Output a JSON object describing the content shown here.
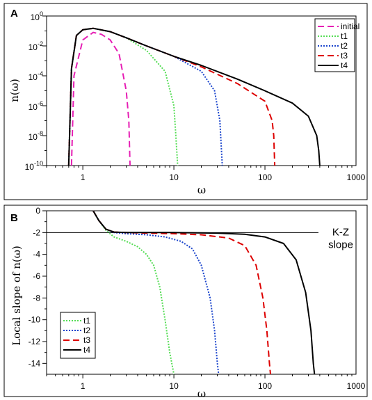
{
  "colors": {
    "initial": "#e61eb4",
    "t1": "#55dd55",
    "t2": "#1a44cc",
    "t3": "#dd0000",
    "t4": "#000000"
  },
  "chart_data": [
    {
      "panel": "A",
      "type": "line",
      "xscale": "log",
      "yscale": "log",
      "xlabel": "ω",
      "ylabel": "n(ω)",
      "xlim": [
        0.4,
        1000
      ],
      "ylim": [
        1e-10,
        1
      ],
      "x_tick_labels": [
        "1",
        "10",
        "100",
        "1000"
      ],
      "y_tick_labels": [
        {
          "base": "10",
          "exp": "0"
        },
        {
          "base": "10",
          "exp": "-2"
        },
        {
          "base": "10",
          "exp": "-4"
        },
        {
          "base": "10",
          "exp": "-6"
        },
        {
          "base": "10",
          "exp": "-8"
        },
        {
          "base": "10",
          "exp": "-10"
        }
      ],
      "legend": [
        "initial",
        "t1",
        "t2",
        "t3",
        "t4"
      ],
      "legend_position": "top-right",
      "series": [
        {
          "name": "initial",
          "style": "dashed",
          "x": [
            0.75,
            0.8,
            1.0,
            1.3,
            1.6,
            2.0,
            2.5,
            3.0,
            3.2,
            3.3
          ],
          "y": [
            1e-10,
            0.0001,
            0.025,
            0.08,
            0.06,
            0.025,
            0.003,
            1e-05,
            1e-07,
            1e-10
          ]
        },
        {
          "name": "t1",
          "style": "dotted",
          "x": [
            0.7,
            0.75,
            0.85,
            1.0,
            1.3,
            2.0,
            3.0,
            5.0,
            8.0,
            10.0,
            10.5,
            11.0
          ],
          "y": [
            1e-10,
            0.0003,
            0.05,
            0.12,
            0.15,
            0.09,
            0.035,
            0.005,
            0.0002,
            1e-06,
            1e-08,
            1e-10
          ]
        },
        {
          "name": "t2",
          "style": "dotted",
          "x": [
            0.7,
            0.75,
            0.85,
            1.0,
            1.3,
            2.0,
            3.0,
            5.0,
            10.0,
            20.0,
            28.0,
            32.0,
            34.0
          ],
          "y": [
            1e-10,
            0.0003,
            0.05,
            0.12,
            0.15,
            0.09,
            0.035,
            0.01,
            0.002,
            0.0002,
            1e-05,
            1e-07,
            1e-10
          ]
        },
        {
          "name": "t3",
          "style": "dashed",
          "x": [
            0.7,
            0.75,
            0.85,
            1.0,
            1.3,
            2.0,
            3.0,
            5.0,
            10.0,
            20.0,
            50.0,
            100.0,
            120.0,
            125.0,
            128.0
          ],
          "y": [
            1e-10,
            0.0003,
            0.05,
            0.12,
            0.15,
            0.09,
            0.035,
            0.01,
            0.002,
            0.0004,
            3e-05,
            2e-06,
            1e-07,
            1e-08,
            1e-10
          ]
        },
        {
          "name": "t4",
          "style": "solid",
          "x": [
            0.7,
            0.75,
            0.85,
            1.0,
            1.3,
            2.0,
            3.0,
            5.0,
            10.0,
            20.0,
            50.0,
            100.0,
            200.0,
            300.0,
            370.0,
            390.0,
            400.0
          ],
          "y": [
            1e-10,
            0.0003,
            0.05,
            0.12,
            0.15,
            0.09,
            0.035,
            0.01,
            0.002,
            0.0005,
            6e-05,
            1e-05,
            1.5e-06,
            2e-07,
            1e-08,
            1e-09,
            1e-10
          ]
        }
      ]
    },
    {
      "panel": "B",
      "type": "line",
      "xscale": "log",
      "xlabel": "ω",
      "ylabel": "Local slope of n(ω)",
      "xlim": [
        0.4,
        1000
      ],
      "ylim": [
        -15,
        0
      ],
      "x_tick_labels": [
        "1",
        "10",
        "100",
        "1000"
      ],
      "y_tick_labels": [
        "0",
        "-2",
        "-4",
        "-6",
        "-8",
        "-10",
        "-12",
        "-14"
      ],
      "reference_line": {
        "y": -2,
        "label_line1": "K-Z",
        "label_line2": "slope"
      },
      "legend": [
        "t1",
        "t2",
        "t3",
        "t4"
      ],
      "legend_position": "bottom-left",
      "series": [
        {
          "name": "t1",
          "style": "dotted",
          "x": [
            1.3,
            1.5,
            1.8,
            2.2,
            3.0,
            4.0,
            5.0,
            6.0,
            7.0,
            8.0,
            9.0,
            10.0
          ],
          "y": [
            0.0,
            -0.9,
            -1.8,
            -2.4,
            -2.8,
            -3.3,
            -4.0,
            -5.0,
            -7.0,
            -10.0,
            -13.0,
            -15.0
          ]
        },
        {
          "name": "t2",
          "style": "dotted",
          "x": [
            1.3,
            1.5,
            1.8,
            2.2,
            3.0,
            5.0,
            8.0,
            12.0,
            16.0,
            20.0,
            25.0,
            28.0,
            30.0,
            31.0
          ],
          "y": [
            0.0,
            -0.9,
            -1.7,
            -2.0,
            -2.1,
            -2.2,
            -2.4,
            -2.8,
            -3.5,
            -5.0,
            -8.0,
            -11.0,
            -14.0,
            -15.0
          ]
        },
        {
          "name": "t3",
          "style": "dashed",
          "x": [
            1.3,
            1.5,
            1.8,
            2.2,
            3.0,
            5.0,
            10.0,
            20.0,
            40.0,
            60.0,
            80.0,
            95.0,
            105.0,
            112.0,
            115.0
          ],
          "y": [
            0.0,
            -0.9,
            -1.7,
            -1.95,
            -2.0,
            -2.05,
            -2.1,
            -2.2,
            -2.5,
            -3.2,
            -5.0,
            -8.0,
            -11.0,
            -14.0,
            -15.0
          ]
        },
        {
          "name": "t4",
          "style": "solid",
          "x": [
            1.3,
            1.5,
            1.8,
            2.2,
            3.0,
            5.0,
            10.0,
            30.0,
            60.0,
            100.0,
            160.0,
            220.0,
            280.0,
            320.0,
            340.0,
            350.0
          ],
          "y": [
            0.0,
            -0.9,
            -1.7,
            -1.95,
            -2.0,
            -2.0,
            -2.0,
            -2.05,
            -2.15,
            -2.4,
            -3.0,
            -4.5,
            -7.5,
            -11.0,
            -14.0,
            -15.0
          ]
        }
      ]
    }
  ]
}
